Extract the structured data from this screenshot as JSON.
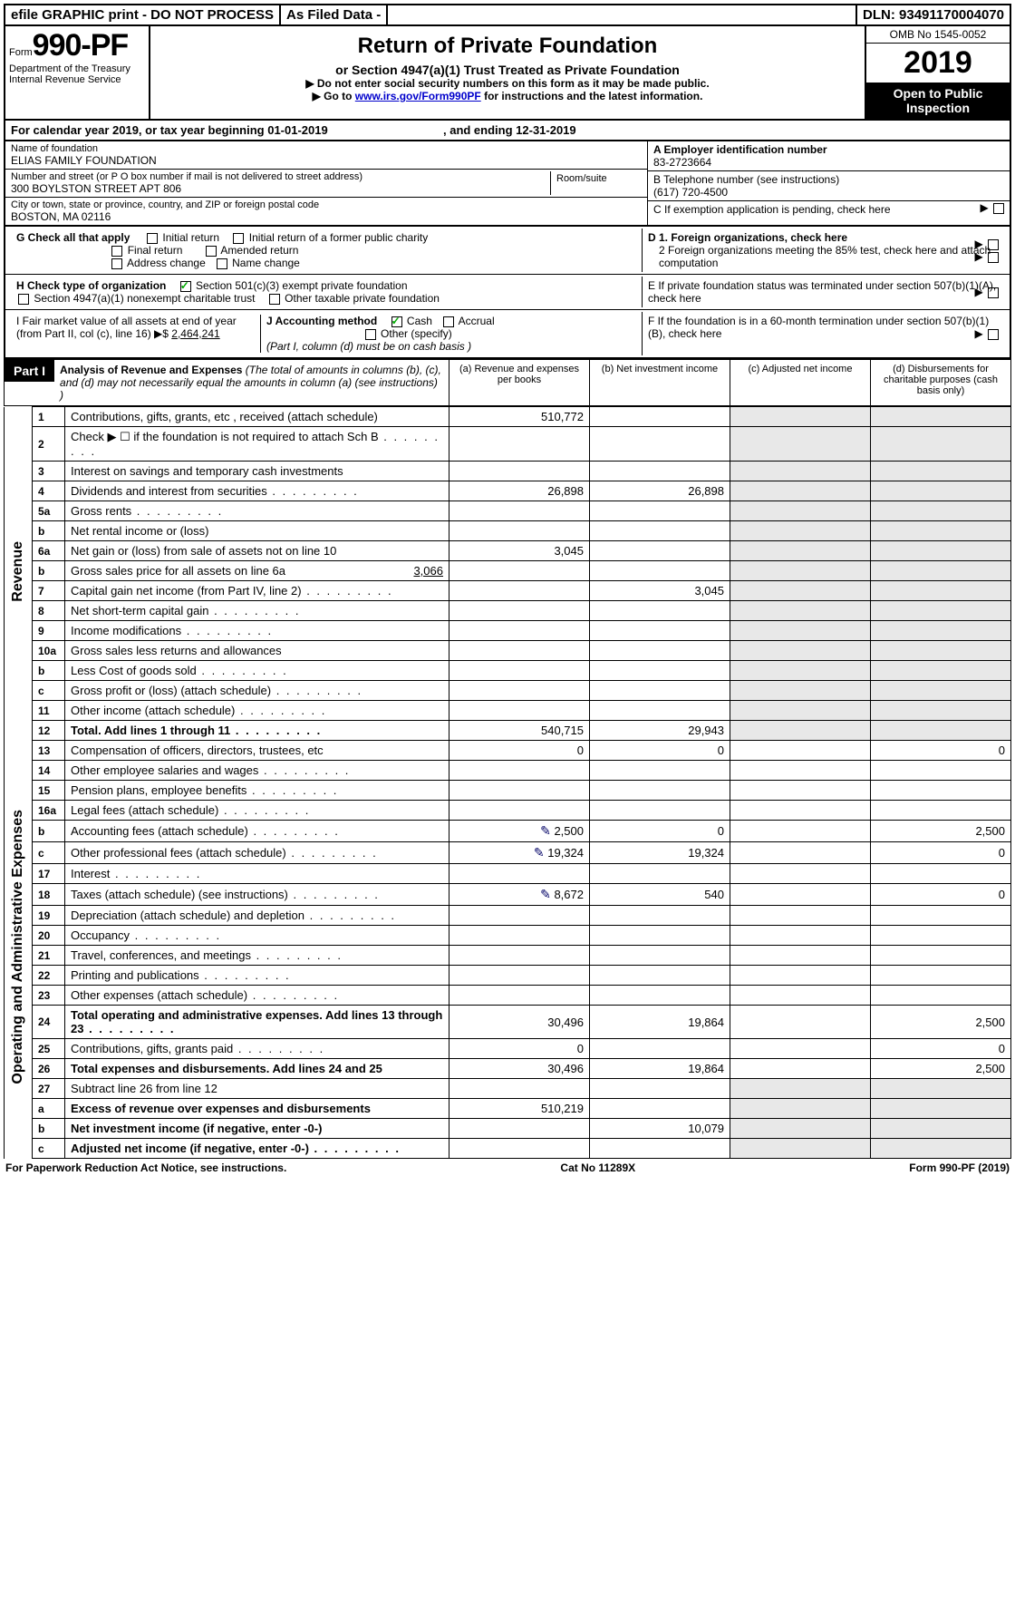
{
  "topbar": {
    "efile": "efile GRAPHIC print - DO NOT PROCESS",
    "asfiled": "As Filed Data -",
    "dln": "DLN: 93491170004070"
  },
  "header": {
    "form_prefix": "Form",
    "form_no": "990-PF",
    "dept": "Department of the Treasury",
    "irs": "Internal Revenue Service",
    "title": "Return of Private Foundation",
    "subtitle": "or Section 4947(a)(1) Trust Treated as Private Foundation",
    "note1": "▶ Do not enter social security numbers on this form as it may be made public.",
    "note2_pre": "▶ Go to ",
    "note2_link": "www.irs.gov/Form990PF",
    "note2_post": " for instructions and the latest information.",
    "omb": "OMB No 1545-0052",
    "year": "2019",
    "open": "Open to Public Inspection"
  },
  "cal": {
    "text_pre": "For calendar year 2019, or tax year beginning 01-01-2019",
    "text_mid": ", and ending 12-31-2019"
  },
  "id": {
    "name_lbl": "Name of foundation",
    "name": "ELIAS FAMILY FOUNDATION",
    "addr_lbl": "Number and street (or P O  box number if mail is not delivered to street address)",
    "addr": "300 BOYLSTON STREET APT 806",
    "room_lbl": "Room/suite",
    "city_lbl": "City or town, state or province, country, and ZIP or foreign postal code",
    "city": "BOSTON, MA  02116",
    "a_lbl": "A Employer identification number",
    "a_val": "83-2723664",
    "b_lbl": "B Telephone number (see instructions)",
    "b_val": "(617) 720-4500",
    "c_lbl": "C If exemption application is pending, check here"
  },
  "checks": {
    "g_lbl": "G Check all that apply",
    "g_opts": [
      "Initial return",
      "Initial return of a former public charity",
      "Final return",
      "Amended return",
      "Address change",
      "Name change"
    ],
    "h_lbl": "H Check type of organization",
    "h_opts": [
      "Section 501(c)(3) exempt private foundation",
      "Section 4947(a)(1) nonexempt charitable trust",
      "Other taxable private foundation"
    ],
    "i_lbl": "I Fair market value of all assets at end of year (from Part II, col  (c), line 16) ▶$ ",
    "i_val": "2,464,241",
    "j_lbl": "J Accounting method",
    "j_opts": [
      "Cash",
      "Accrual",
      "Other (specify)"
    ],
    "j_note": "(Part I, column (d) must be on cash basis )",
    "d1": "D 1. Foreign organizations, check here",
    "d2": "2 Foreign organizations meeting the 85% test, check here and attach computation",
    "e": "E  If private foundation status was terminated under section 507(b)(1)(A), check here",
    "f": "F  If the foundation is in a 60-month termination under section 507(b)(1)(B), check here"
  },
  "part1": {
    "tab": "Part I",
    "title": "Analysis of Revenue and Expenses",
    "title_note": " (The total of amounts in columns (b), (c), and (d) may not necessarily equal the amounts in column (a) (see instructions) )",
    "cols": {
      "a": "(a) Revenue and expenses per books",
      "b": "(b) Net investment income",
      "c": "(c) Adjusted net income",
      "d": "(d) Disbursements for charitable purposes (cash basis only)"
    }
  },
  "side_labels": {
    "rev": "Revenue",
    "exp": "Operating and Administrative Expenses"
  },
  "rows": [
    {
      "n": "1",
      "d": "Contributions, gifts, grants, etc , received (attach schedule)",
      "a": "510,772"
    },
    {
      "n": "2",
      "d": "Check ▶ ☐ if the foundation is not required to attach Sch B",
      "dots": true
    },
    {
      "n": "3",
      "d": "Interest on savings and temporary cash investments"
    },
    {
      "n": "4",
      "d": "Dividends and interest from securities",
      "dots": true,
      "a": "26,898",
      "b": "26,898"
    },
    {
      "n": "5a",
      "d": "Gross rents",
      "dots": true
    },
    {
      "n": "b",
      "d": "Net rental income or (loss)"
    },
    {
      "n": "6a",
      "d": "Net gain or (loss) from sale of assets not on line 10",
      "a": "3,045"
    },
    {
      "n": "b",
      "d": "Gross sales price for all assets on line 6a",
      "in": "3,066"
    },
    {
      "n": "7",
      "d": "Capital gain net income (from Part IV, line 2)",
      "dots": true,
      "b": "3,045"
    },
    {
      "n": "8",
      "d": "Net short-term capital gain",
      "dots": true
    },
    {
      "n": "9",
      "d": "Income modifications",
      "dots": true
    },
    {
      "n": "10a",
      "d": "Gross sales less returns and allowances"
    },
    {
      "n": "b",
      "d": "Less  Cost of goods sold",
      "dots": true
    },
    {
      "n": "c",
      "d": "Gross profit or (loss) (attach schedule)",
      "dots": true
    },
    {
      "n": "11",
      "d": "Other income (attach schedule)",
      "dots": true
    },
    {
      "n": "12",
      "d": "Total. Add lines 1 through 11",
      "dots": true,
      "bold": true,
      "a": "540,715",
      "b": "29,943"
    }
  ],
  "exp_rows": [
    {
      "n": "13",
      "d": "Compensation of officers, directors, trustees, etc",
      "a": "0",
      "b": "0",
      "dd": "0"
    },
    {
      "n": "14",
      "d": "Other employee salaries and wages",
      "dots": true
    },
    {
      "n": "15",
      "d": "Pension plans, employee benefits",
      "dots": true
    },
    {
      "n": "16a",
      "d": "Legal fees (attach schedule)",
      "dots": true
    },
    {
      "n": "b",
      "d": "Accounting fees (attach schedule)",
      "dots": true,
      "icon": true,
      "a": "2,500",
      "b": "0",
      "dd": "2,500"
    },
    {
      "n": "c",
      "d": "Other professional fees (attach schedule)",
      "dots": true,
      "icon": true,
      "a": "19,324",
      "b": "19,324",
      "dd": "0"
    },
    {
      "n": "17",
      "d": "Interest",
      "dots": true
    },
    {
      "n": "18",
      "d": "Taxes (attach schedule) (see instructions)",
      "dots": true,
      "icon": true,
      "a": "8,672",
      "b": "540",
      "dd": "0"
    },
    {
      "n": "19",
      "d": "Depreciation (attach schedule) and depletion",
      "dots": true
    },
    {
      "n": "20",
      "d": "Occupancy",
      "dots": true
    },
    {
      "n": "21",
      "d": "Travel, conferences, and meetings",
      "dots": true
    },
    {
      "n": "22",
      "d": "Printing and publications",
      "dots": true
    },
    {
      "n": "23",
      "d": "Other expenses (attach schedule)",
      "dots": true
    },
    {
      "n": "24",
      "d": "Total operating and administrative expenses. Add lines 13 through 23",
      "dots": true,
      "bold": true,
      "a": "30,496",
      "b": "19,864",
      "dd": "2,500"
    },
    {
      "n": "25",
      "d": "Contributions, gifts, grants paid",
      "dots": true,
      "a": "0",
      "dd": "0"
    },
    {
      "n": "26",
      "d": "Total expenses and disbursements. Add lines 24 and 25",
      "bold": true,
      "a": "30,496",
      "b": "19,864",
      "dd": "2,500"
    }
  ],
  "bottom_rows": [
    {
      "n": "27",
      "d": "Subtract line 26 from line 12"
    },
    {
      "n": "a",
      "d": "Excess of revenue over expenses and disbursements",
      "bold": true,
      "a": "510,219"
    },
    {
      "n": "b",
      "d": "Net investment income (if negative, enter -0-)",
      "bold": true,
      "b": "10,079"
    },
    {
      "n": "c",
      "d": "Adjusted net income (if negative, enter -0-)",
      "dots": true,
      "bold": true
    }
  ],
  "footer": {
    "l": "For Paperwork Reduction Act Notice, see instructions.",
    "c": "Cat No  11289X",
    "r": "Form 990-PF (2019)"
  }
}
